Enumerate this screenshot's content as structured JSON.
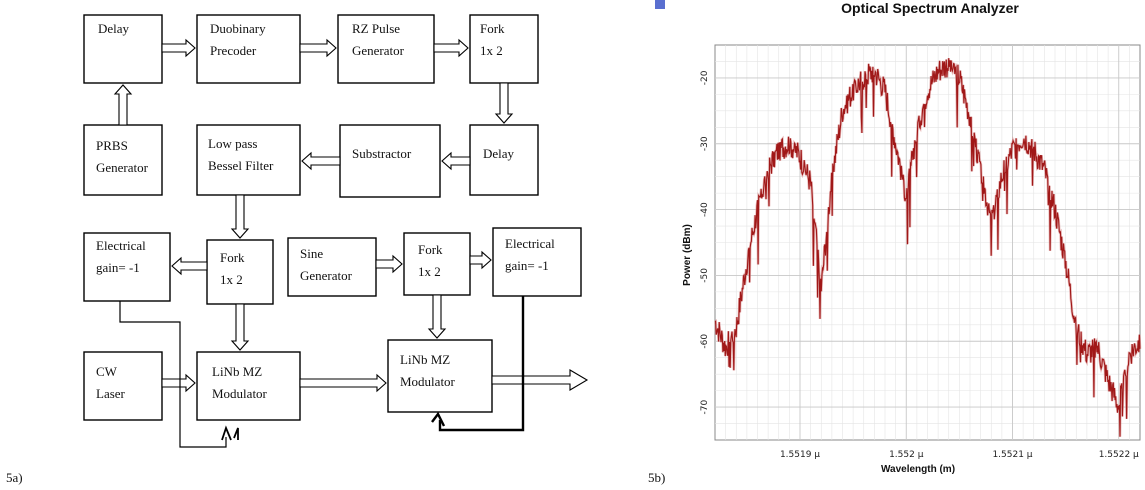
{
  "left_figure": {
    "caption": "5a)",
    "blocks": {
      "delay1": [
        "Delay"
      ],
      "precoder": [
        "Duobinary",
        "Precoder"
      ],
      "rz": [
        "RZ Pulse",
        "Generator"
      ],
      "fork_top": [
        "Fork",
        "1x 2"
      ],
      "prbs": [
        "PRBS",
        "Generator"
      ],
      "lpf": [
        "Low pass",
        "Bessel Filter"
      ],
      "subtractor": [
        "Substractor"
      ],
      "delay2": [
        "Delay"
      ],
      "gain1": [
        "Electrical",
        "gain= -1"
      ],
      "fork_mid": [
        "Fork",
        "1x 2"
      ],
      "sine": [
        "Sine",
        "Generator"
      ],
      "fork_right": [
        "Fork",
        "1x 2"
      ],
      "gain2": [
        "Electrical",
        "gain= -1"
      ],
      "cw": [
        "CW",
        "Laser"
      ],
      "mz1": [
        "LiNb MZ",
        "Modulator"
      ],
      "mz2": [
        "LiNb MZ",
        "Modulator"
      ]
    }
  },
  "right_figure": {
    "caption": "5b)",
    "colors": {
      "trace": "#a01818",
      "trace_light": "#d88a8a",
      "grid": "#c8c8c8",
      "icon": "#5a6fd0"
    },
    "chart_data": {
      "type": "line",
      "title": "Optical Spectrum Analyzer",
      "xlabel": "Wavelength (m)",
      "ylabel": "Power (dBm)",
      "xlim": [
        1.55182,
        1.55222
      ],
      "ylim": [
        -75,
        -15
      ],
      "x_ticks": [
        1.5519,
        1.552,
        1.5521,
        1.5522
      ],
      "x_tick_labels": [
        "1.5519 µ",
        "1.552 µ",
        "1.5521 µ",
        "1.5522 µ"
      ],
      "y_ticks": [
        -20,
        -30,
        -40,
        -50,
        -60,
        -70
      ],
      "y_tick_labels": [
        "-20",
        "-30",
        "-40",
        "-50",
        "-60",
        "-70"
      ],
      "grid": true,
      "series": [
        {
          "x": [
            1.55182,
            1.55183,
            1.55184,
            1.55185,
            1.55186,
            1.55187,
            1.55188,
            1.55189,
            1.5519,
            1.55191,
            1.55192,
            1.55193,
            1.55194,
            1.55195,
            1.55196,
            1.55197,
            1.55198,
            1.55199,
            1.552,
            1.55201,
            1.55202,
            1.55203,
            1.55204,
            1.55205,
            1.55206,
            1.55207,
            1.55208,
            1.55209,
            1.5521,
            1.55211,
            1.55212,
            1.55213,
            1.55214,
            1.55215,
            1.55216,
            1.55217,
            1.55218,
            1.55219,
            1.5522,
            1.55221,
            1.55222
          ],
          "y": [
            -57,
            -61,
            -58,
            -48,
            -40,
            -34,
            -31,
            -30,
            -32,
            -36,
            -52,
            -35,
            -25,
            -22,
            -20,
            -19,
            -22,
            -30,
            -38,
            -28,
            -22,
            -19,
            -18,
            -20,
            -26,
            -34,
            -42,
            -35,
            -31,
            -29,
            -31,
            -34,
            -40,
            -48,
            -58,
            -62,
            -61,
            -66,
            -70,
            -62,
            -60
          ]
        }
      ]
    }
  }
}
